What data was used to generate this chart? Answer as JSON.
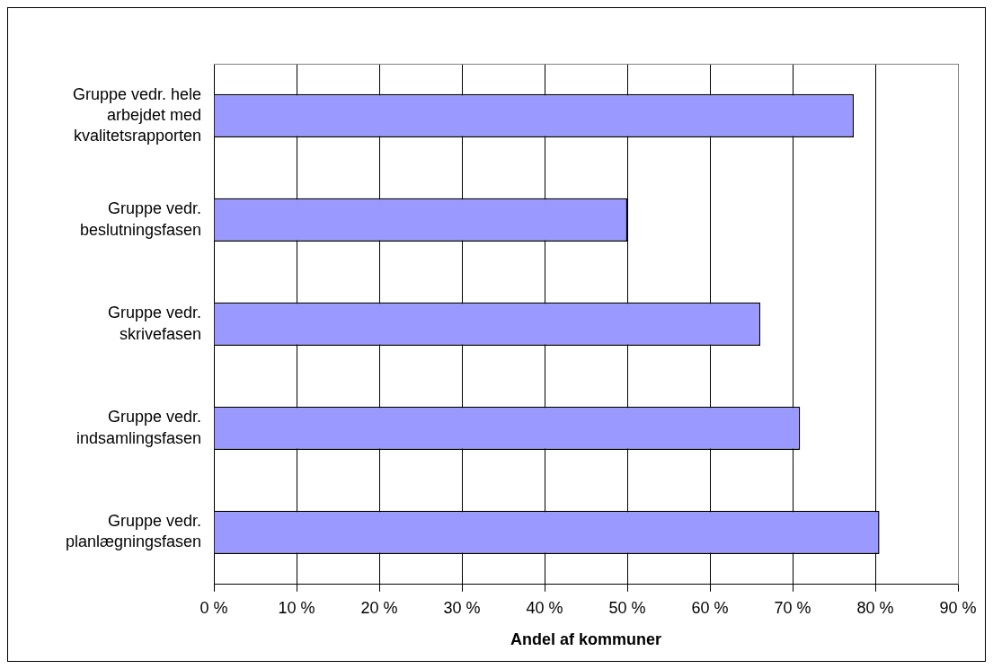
{
  "chart_data": {
    "type": "bar",
    "orientation": "horizontal",
    "xlabel": "Andel af kommuner",
    "categories": [
      "Gruppe vedr. hele arbejdet med kvalitetsrapporten",
      "Gruppe vedr. beslutningsfasen",
      "Gruppe vedr. skrivefasen",
      "Gruppe vedr. indsamlingsfasen",
      "Gruppe vedr. planlægningsfasen"
    ],
    "values": [
      77.4,
      50,
      66.1,
      70.9,
      80.5
    ],
    "color": "#9999ff",
    "xlim": [
      0,
      90
    ],
    "xticks": [
      {
        "value": 0,
        "label": "0 %"
      },
      {
        "value": 10,
        "label": "10 %"
      },
      {
        "value": 20,
        "label": "20 %"
      },
      {
        "value": 30,
        "label": "30 %"
      },
      {
        "value": 40,
        "label": "40 %"
      },
      {
        "value": 50,
        "label": "50 %"
      },
      {
        "value": 60,
        "label": "60 %"
      },
      {
        "value": 70,
        "label": "70 %"
      },
      {
        "value": 80,
        "label": "80 %"
      },
      {
        "value": 90,
        "label": "90 %"
      }
    ],
    "grid": "x",
    "legend": false
  }
}
